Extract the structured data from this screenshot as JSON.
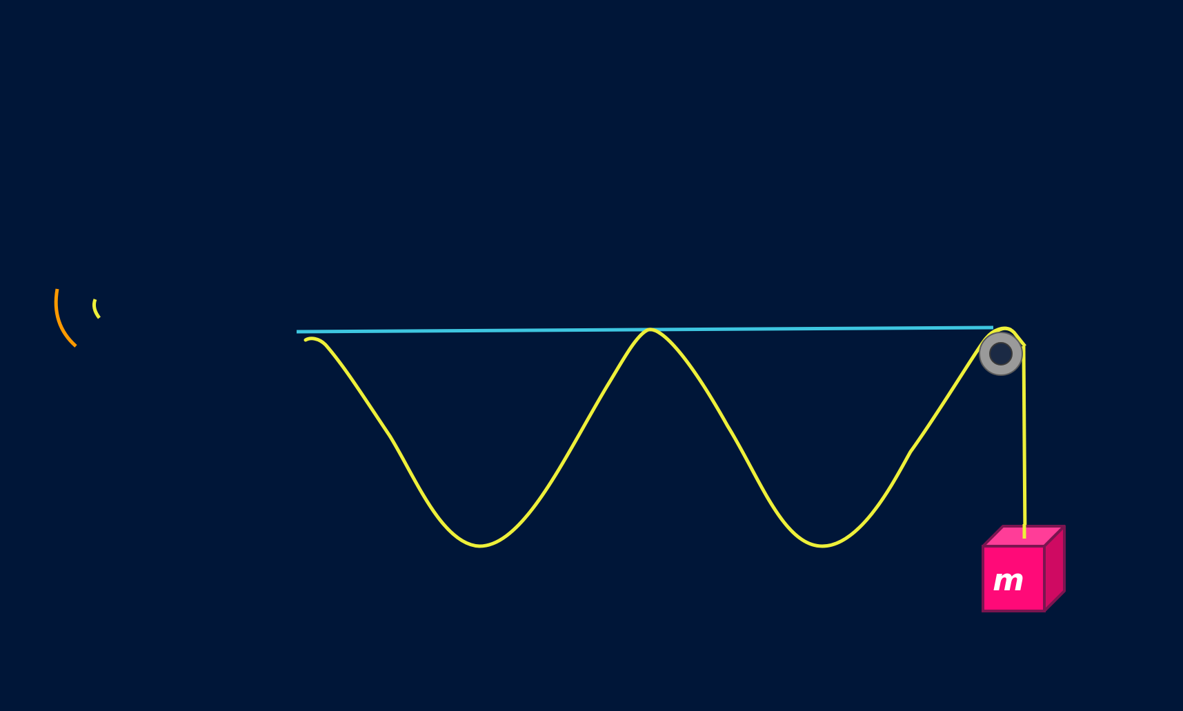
{
  "diagram": {
    "type": "standing-wave-on-string-with-pulley",
    "mass_label": "m",
    "colors": {
      "background": "#001638",
      "string": "#eef03a",
      "reference_line": "#3ec6e0",
      "pulley_rim": "#9a9a9a",
      "pulley_hub": "#1b2a44",
      "block_front": "#ff0a78",
      "block_top": "#ff3d98",
      "block_side": "#cf0a62",
      "block_edge": "#7a1550",
      "speaker_wave_outer": "#ff9a00",
      "speaker_wave_inner": "#eef03a"
    },
    "icons": {
      "source": "sound-wave-icon",
      "pulley": "pulley-icon",
      "mass": "mass-block-icon"
    }
  }
}
